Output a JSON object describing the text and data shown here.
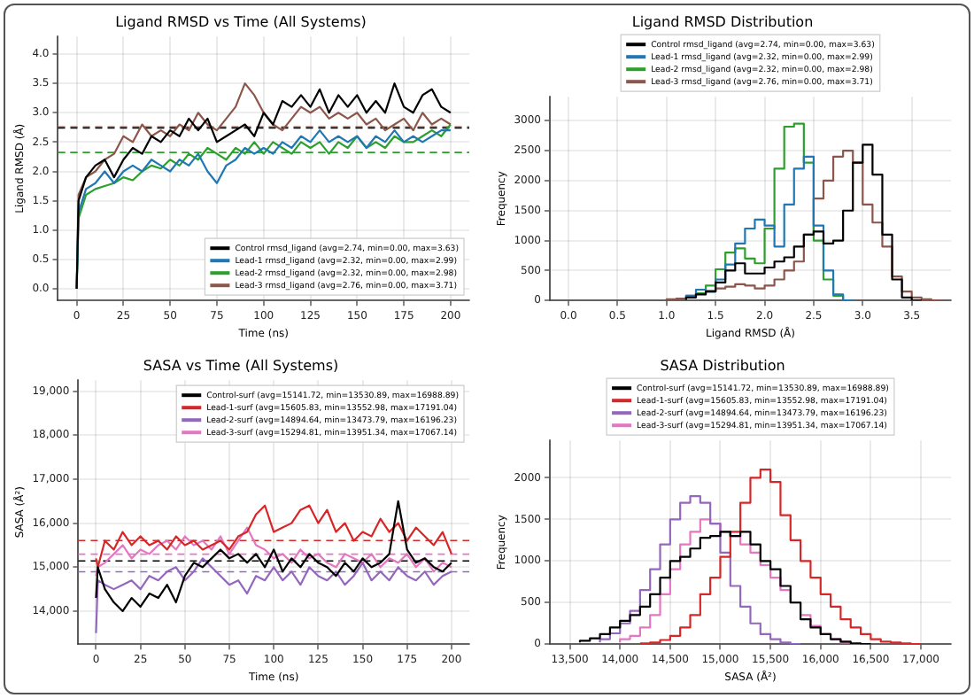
{
  "chart_data": [
    {
      "type": "line",
      "title": "Ligand RMSD vs Time (All Systems)",
      "xlabel": "Time (ns)",
      "ylabel": "Ligand RMSD (Å)",
      "xlim": [
        -10,
        210
      ],
      "ylim": [
        -0.2,
        4.3
      ],
      "xticks": [
        0,
        25,
        50,
        75,
        100,
        125,
        150,
        175,
        200
      ],
      "yticks": [
        {
          "value": 0,
          "label": "0.0"
        },
        0.5,
        {
          "value": 1,
          "label": "1.0"
        },
        1.5,
        {
          "value": 2,
          "label": "2.0"
        },
        2.5,
        {
          "value": 3,
          "label": "3.0"
        },
        3.5,
        {
          "value": 4,
          "label": "4.0"
        }
      ],
      "grid": true,
      "legend": "bottom right",
      "x": [
        0,
        1,
        5,
        10,
        15,
        20,
        25,
        30,
        35,
        40,
        45,
        50,
        55,
        60,
        65,
        70,
        75,
        80,
        85,
        90,
        95,
        100,
        105,
        110,
        115,
        120,
        125,
        130,
        135,
        140,
        145,
        150,
        155,
        160,
        165,
        170,
        175,
        180,
        185,
        190,
        195,
        200
      ],
      "series": [
        {
          "name": "Control rmsd_ligand (avg=2.74, min=0.00, max=3.63)",
          "color": "#000000",
          "values": [
            0,
            1.5,
            1.9,
            2.1,
            2.2,
            1.9,
            2.2,
            2.4,
            2.3,
            2.6,
            2.5,
            2.7,
            2.6,
            2.9,
            2.7,
            2.9,
            2.5,
            2.6,
            2.7,
            2.8,
            2.6,
            3.0,
            2.8,
            3.2,
            3.1,
            3.3,
            3.1,
            3.4,
            3.0,
            3.3,
            3.1,
            3.3,
            3.0,
            3.2,
            3.0,
            3.5,
            3.1,
            3.0,
            3.3,
            3.4,
            3.1,
            3.0
          ]
        },
        {
          "name": "Lead-1 rmsd_ligand (avg=2.32, min=0.00, max=2.99)",
          "color": "#1f77b4",
          "values": [
            0,
            1.3,
            1.7,
            1.8,
            2.0,
            1.8,
            2.0,
            2.1,
            2.0,
            2.2,
            2.1,
            2.0,
            2.2,
            2.1,
            2.3,
            2.0,
            1.8,
            2.1,
            2.2,
            2.4,
            2.3,
            2.4,
            2.3,
            2.5,
            2.4,
            2.6,
            2.5,
            2.7,
            2.5,
            2.6,
            2.5,
            2.6,
            2.4,
            2.6,
            2.5,
            2.7,
            2.5,
            2.6,
            2.5,
            2.6,
            2.7,
            2.7
          ]
        },
        {
          "name": "Lead-2 rmsd_ligand (avg=2.32, min=0.00, max=2.98)",
          "color": "#2ca02c",
          "values": [
            0,
            1.2,
            1.6,
            1.7,
            1.75,
            1.8,
            1.9,
            1.85,
            2.0,
            2.1,
            2.05,
            2.2,
            2.1,
            2.3,
            2.2,
            2.4,
            2.3,
            2.2,
            2.4,
            2.3,
            2.5,
            2.3,
            2.5,
            2.4,
            2.3,
            2.5,
            2.4,
            2.5,
            2.3,
            2.5,
            2.4,
            2.6,
            2.4,
            2.5,
            2.4,
            2.6,
            2.5,
            2.5,
            2.6,
            2.7,
            2.6,
            2.8
          ]
        },
        {
          "name": "Lead-3 rmsd_ligand (avg=2.76, min=0.00, max=3.71)",
          "color": "#8c564b",
          "values": [
            0,
            1.6,
            1.9,
            2.0,
            2.2,
            2.3,
            2.6,
            2.5,
            2.8,
            2.6,
            2.7,
            2.6,
            2.8,
            2.7,
            3.0,
            2.8,
            2.7,
            2.9,
            3.1,
            3.5,
            3.3,
            3.0,
            2.8,
            2.7,
            2.9,
            3.1,
            3.0,
            3.1,
            2.9,
            3.0,
            2.9,
            3.0,
            2.8,
            2.9,
            2.7,
            2.8,
            2.9,
            2.7,
            3.0,
            2.8,
            2.9,
            2.8
          ]
        }
      ],
      "ref_lines": [
        {
          "axis": "y",
          "value": 2.74,
          "color": "#000000",
          "line_style": "dashed"
        },
        {
          "axis": "y",
          "value": 2.32,
          "color": "#1f77b4",
          "line_style": "dashed"
        },
        {
          "axis": "y",
          "value": 2.32,
          "color": "#2ca02c",
          "line_style": "dashed"
        },
        {
          "axis": "y",
          "value": 2.76,
          "color": "#8c564b",
          "line_style": "dashed"
        }
      ]
    },
    {
      "type": "step",
      "title": "Ligand RMSD Distribution",
      "xlabel": "Ligand RMSD (Å)",
      "ylabel": "Frequency",
      "xlim": [
        -0.19,
        3.9
      ],
      "ylim": [
        0,
        3400
      ],
      "xticks": [
        {
          "value": 0,
          "label": "0.0"
        },
        0.5,
        {
          "value": 1,
          "label": "1.0"
        },
        1.5,
        {
          "value": 2,
          "label": "2.0"
        },
        2.5,
        {
          "value": 3,
          "label": "3.0"
        },
        3.5
      ],
      "yticks": [
        0,
        500,
        1000,
        1500,
        2000,
        2500,
        3000
      ],
      "grid": true,
      "legend": "top",
      "series": [
        {
          "name": "Control rmsd_ligand (avg=2.74, min=0.00, max=3.63)",
          "color": "#000000",
          "x": [
            1.2,
            1.3,
            1.4,
            1.5,
            1.6,
            1.7,
            1.8,
            1.9,
            2.0,
            2.1,
            2.2,
            2.3,
            2.4,
            2.5,
            2.6,
            2.7,
            2.8,
            2.9,
            3.0,
            3.1,
            3.2,
            3.3,
            3.4,
            3.5,
            3.6
          ],
          "values": [
            10,
            50,
            100,
            150,
            300,
            500,
            620,
            450,
            450,
            550,
            650,
            720,
            900,
            1100,
            1150,
            950,
            1000,
            1500,
            2300,
            2600,
            2100,
            1100,
            350,
            50,
            0
          ]
        },
        {
          "name": "Lead-1 rmsd_ligand (avg=2.32, min=0.00, max=2.99)",
          "color": "#1f77b4",
          "x": [
            1.2,
            1.3,
            1.4,
            1.5,
            1.6,
            1.7,
            1.8,
            1.9,
            2.0,
            2.1,
            2.2,
            2.3,
            2.4,
            2.5,
            2.6,
            2.7,
            2.8,
            2.9
          ],
          "values": [
            20,
            80,
            180,
            150,
            350,
            600,
            950,
            1200,
            1350,
            1250,
            900,
            1600,
            2200,
            2400,
            1250,
            500,
            100,
            0
          ]
        },
        {
          "name": "Lead-2 rmsd_ligand (avg=2.32, min=0.00, max=2.98)",
          "color": "#2ca02c",
          "x": [
            1.2,
            1.3,
            1.4,
            1.5,
            1.6,
            1.7,
            1.8,
            1.9,
            2.0,
            2.1,
            2.2,
            2.3,
            2.4,
            2.5,
            2.6,
            2.7,
            2.8,
            2.9
          ],
          "values": [
            20,
            60,
            120,
            250,
            520,
            800,
            870,
            700,
            620,
            1200,
            2200,
            2900,
            2950,
            2300,
            1000,
            350,
            80,
            0
          ]
        },
        {
          "name": "Lead-3 rmsd_ligand (avg=2.76, min=0.00, max=3.71)",
          "color": "#8c564b",
          "x": [
            1.0,
            1.1,
            1.2,
            1.3,
            1.4,
            1.5,
            1.6,
            1.7,
            1.8,
            1.9,
            2.0,
            2.1,
            2.2,
            2.3,
            2.4,
            2.5,
            2.6,
            2.7,
            2.8,
            2.9,
            3.0,
            3.1,
            3.2,
            3.3,
            3.4,
            3.5,
            3.6,
            3.7,
            3.8
          ],
          "values": [
            10,
            20,
            30,
            80,
            120,
            160,
            200,
            230,
            270,
            250,
            200,
            250,
            350,
            500,
            650,
            1100,
            1700,
            2000,
            2400,
            2500,
            2300,
            1600,
            1300,
            900,
            400,
            150,
            50,
            20,
            0
          ]
        }
      ]
    },
    {
      "type": "line",
      "title": "SASA vs Time (All Systems)",
      "xlabel": "Time (ns)",
      "ylabel": "SASA (Å²)",
      "xlim": [
        -10,
        210
      ],
      "ylim": [
        13250,
        19250
      ],
      "xticks": [
        0,
        25,
        50,
        75,
        100,
        125,
        150,
        175,
        200
      ],
      "yticks": [
        {
          "value": 14000,
          "label": "14,000"
        },
        {
          "value": 15000,
          "label": "15,000"
        },
        {
          "value": 16000,
          "label": "16,000"
        },
        {
          "value": 17000,
          "label": "17,000"
        },
        {
          "value": 18000,
          "label": "18,000"
        },
        {
          "value": 19000,
          "label": "19,000"
        }
      ],
      "grid": true,
      "legend": "top right",
      "x": [
        0,
        1,
        5,
        10,
        15,
        20,
        25,
        30,
        35,
        40,
        45,
        50,
        55,
        60,
        65,
        70,
        75,
        80,
        85,
        90,
        95,
        100,
        105,
        110,
        115,
        120,
        125,
        130,
        135,
        140,
        145,
        150,
        155,
        160,
        165,
        170,
        175,
        180,
        185,
        190,
        195,
        200
      ],
      "series": [
        {
          "name": "Control-surf (avg=15141.72, min=13530.89, max=16988.89)",
          "color": "#000000",
          "values": [
            14300,
            15000,
            14500,
            14200,
            14000,
            14300,
            14100,
            14400,
            14300,
            14600,
            14200,
            14800,
            15100,
            15000,
            15200,
            15400,
            15200,
            15300,
            15100,
            15300,
            15000,
            15400,
            14900,
            15200,
            15000,
            15300,
            15100,
            15000,
            14800,
            15100,
            14900,
            15200,
            15000,
            15100,
            15300,
            16500,
            15400,
            15100,
            15200,
            15000,
            14900,
            15100
          ]
        },
        {
          "name": "Lead-1-surf (avg=15605.83, min=13552.98, max=17191.04)",
          "color": "#d62728",
          "values": [
            15200,
            15000,
            15600,
            15400,
            15800,
            15500,
            15700,
            15500,
            15600,
            15400,
            15700,
            15500,
            15600,
            15400,
            15500,
            15600,
            15400,
            15700,
            15800,
            16200,
            16400,
            15800,
            15900,
            16000,
            16300,
            16400,
            16000,
            16300,
            15800,
            16000,
            15600,
            15800,
            15700,
            16100,
            15800,
            16000,
            15600,
            15900,
            15700,
            15500,
            15800,
            15300
          ]
        },
        {
          "name": "Lead-2-surf (avg=14894.64, min=13473.79, max=16196.23)",
          "color": "#9467bd",
          "values": [
            13500,
            14700,
            14600,
            14500,
            14600,
            14700,
            14500,
            14800,
            14700,
            14900,
            15000,
            14700,
            14900,
            15200,
            15000,
            14800,
            14600,
            14700,
            14400,
            14800,
            14700,
            15000,
            14700,
            14900,
            14600,
            15000,
            14800,
            14700,
            14900,
            14600,
            14800,
            15100,
            14700,
            14900,
            14700,
            15000,
            14800,
            14700,
            14900,
            14600,
            14800,
            14900
          ]
        },
        {
          "name": "Lead-3-surf (avg=15294.81, min=13951.34, max=17067.14)",
          "color": "#e377c2",
          "values": [
            14800,
            15000,
            15100,
            15300,
            15500,
            15200,
            15400,
            15300,
            15500,
            15600,
            15400,
            15700,
            15500,
            15600,
            15400,
            15700,
            15300,
            15600,
            15900,
            15500,
            15400,
            15200,
            15300,
            15100,
            15400,
            15200,
            15300,
            15100,
            15000,
            15300,
            15200,
            15100,
            15300,
            15000,
            15200,
            15100,
            15300,
            15000,
            15200,
            14900,
            15100,
            15000
          ]
        }
      ],
      "ref_lines": [
        {
          "axis": "y",
          "value": 15141.72,
          "color": "#000000",
          "line_style": "dashed"
        },
        {
          "axis": "y",
          "value": 15605.83,
          "color": "#d62728",
          "line_style": "dashed"
        },
        {
          "axis": "y",
          "value": 14894.64,
          "color": "#9467bd",
          "line_style": "dashed"
        },
        {
          "axis": "y",
          "value": 15294.81,
          "color": "#e377c2",
          "line_style": "dashed"
        }
      ]
    },
    {
      "type": "step",
      "title": "SASA Distribution",
      "xlabel": "SASA (Å²)",
      "ylabel": "Frequency",
      "xlim": [
        13300,
        17300
      ],
      "ylim": [
        0,
        2450
      ],
      "xticks": [
        {
          "value": 13500,
          "label": "13,500"
        },
        {
          "value": 14000,
          "label": "14,000"
        },
        {
          "value": 14500,
          "label": "14,500"
        },
        {
          "value": 15000,
          "label": "15,000"
        },
        {
          "value": 15500,
          "label": "15,500"
        },
        {
          "value": 16000,
          "label": "16,000"
        },
        {
          "value": 16500,
          "label": "16,500"
        },
        {
          "value": 17000,
          "label": "17,000"
        }
      ],
      "yticks": [
        0,
        500,
        1000,
        1500,
        2000
      ],
      "grid": true,
      "legend": "top",
      "series": [
        {
          "name": "Control-surf (avg=15141.72, min=13530.89, max=16988.89)",
          "color": "#000000",
          "x": [
            13600,
            13700,
            13800,
            13900,
            14000,
            14100,
            14200,
            14300,
            14400,
            14500,
            14600,
            14700,
            14800,
            14900,
            15000,
            15100,
            15200,
            15300,
            15400,
            15500,
            15600,
            15700,
            15800,
            15900,
            16000,
            16100,
            16200,
            16300,
            16400,
            16500
          ],
          "values": [
            20,
            40,
            70,
            120,
            200,
            280,
            350,
            450,
            600,
            800,
            1000,
            1050,
            1150,
            1280,
            1300,
            1350,
            1300,
            1350,
            1200,
            1000,
            900,
            700,
            500,
            300,
            200,
            120,
            60,
            30,
            10,
            0
          ]
        },
        {
          "name": "Lead-1-surf (avg=15605.83, min=13552.98, max=17191.04)",
          "color": "#d62728",
          "x": [
            14200,
            14300,
            14400,
            14500,
            14600,
            14700,
            14800,
            14900,
            15000,
            15100,
            15200,
            15300,
            15400,
            15500,
            15600,
            15700,
            15800,
            15900,
            16000,
            16100,
            16200,
            16300,
            16400,
            16500,
            16600,
            16700,
            16800,
            16900,
            17000
          ],
          "values": [
            10,
            10,
            20,
            50,
            100,
            200,
            350,
            600,
            800,
            1050,
            1350,
            1700,
            2000,
            2100,
            1950,
            1550,
            1250,
            1000,
            800,
            600,
            450,
            300,
            200,
            120,
            60,
            30,
            20,
            10,
            0
          ]
        },
        {
          "name": "Lead-2-surf (avg=14894.64, min=13473.79, max=16196.23)",
          "color": "#9467bd",
          "x": [
            13800,
            13900,
            14000,
            14100,
            14200,
            14300,
            14400,
            14500,
            14600,
            14700,
            14800,
            14900,
            15000,
            15100,
            15200,
            15300,
            15400,
            15500,
            15600,
            15700,
            15800
          ],
          "values": [
            20,
            60,
            130,
            250,
            400,
            650,
            900,
            1200,
            1500,
            1700,
            1780,
            1700,
            1450,
            1100,
            700,
            450,
            250,
            120,
            60,
            20,
            0
          ]
        },
        {
          "name": "Lead-3-surf (avg=15294.81, min=13951.34, max=17067.14)",
          "color": "#e377c2",
          "x": [
            14000,
            14100,
            14200,
            14300,
            14400,
            14500,
            14600,
            14700,
            14800,
            14900,
            15000,
            15100,
            15200,
            15300,
            15400,
            15500,
            15600,
            15700,
            15800,
            15900,
            16000,
            16100,
            16200,
            16300,
            16400
          ],
          "values": [
            20,
            60,
            100,
            200,
            350,
            600,
            900,
            1200,
            1350,
            1500,
            1450,
            1350,
            1300,
            1200,
            1100,
            950,
            800,
            650,
            500,
            350,
            220,
            120,
            60,
            20,
            0
          ]
        }
      ]
    }
  ]
}
